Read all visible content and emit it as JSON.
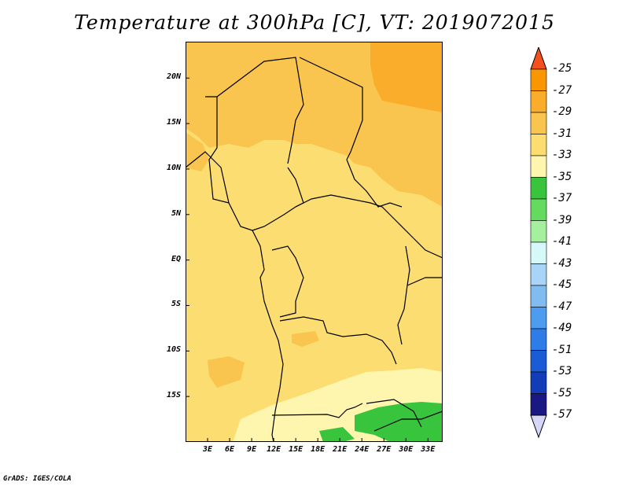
{
  "title": "Temperature at 300hPa [C], VT: 2019072015",
  "credit": "GrADS: IGES/COLA",
  "map": {
    "projection": "lat-lon",
    "lon_range": [
      0,
      35
    ],
    "lat_range": [
      -20,
      24
    ],
    "lat_ticks": [
      {
        "label": "20N",
        "value": 20
      },
      {
        "label": "15N",
        "value": 15
      },
      {
        "label": "10N",
        "value": 10
      },
      {
        "label": "5N",
        "value": 5
      },
      {
        "label": "EQ",
        "value": 0
      },
      {
        "label": "5S",
        "value": -5
      },
      {
        "label": "10S",
        "value": -10
      },
      {
        "label": "15S",
        "value": -15
      }
    ],
    "lon_ticks": [
      {
        "label": "3E",
        "value": 3
      },
      {
        "label": "6E",
        "value": 6
      },
      {
        "label": "9E",
        "value": 9
      },
      {
        "label": "12E",
        "value": 12
      },
      {
        "label": "15E",
        "value": 15
      },
      {
        "label": "18E",
        "value": 18
      },
      {
        "label": "21E",
        "value": 21
      },
      {
        "label": "24E",
        "value": 24
      },
      {
        "label": "27E",
        "value": 27
      },
      {
        "label": "30E",
        "value": 30
      },
      {
        "label": "33E",
        "value": 33
      }
    ],
    "dominant_field_color": "#fbdd72"
  },
  "colorbar": {
    "labels": [
      "-25",
      "-27",
      "-29",
      "-31",
      "-33",
      "-35",
      "-37",
      "-39",
      "-41",
      "-43",
      "-45",
      "-47",
      "-49",
      "-51",
      "-53",
      "-55",
      "-57"
    ],
    "colors": [
      "#f4501e",
      "#f99602",
      "#f9ad2a",
      "#f9c54e",
      "#fbdd72",
      "#fef5af",
      "#38c43c",
      "#64da5f",
      "#a4f09f",
      "#d6f8f8",
      "#a8d4f8",
      "#80bcf0",
      "#4c9cf0",
      "#2e7ce8",
      "#1b5cd6",
      "#133cb8",
      "#1a1883",
      "#d6d6f8"
    ],
    "top_arrow_color": "#f4501e",
    "bottom_arrow_color": "#d6d6f8"
  }
}
